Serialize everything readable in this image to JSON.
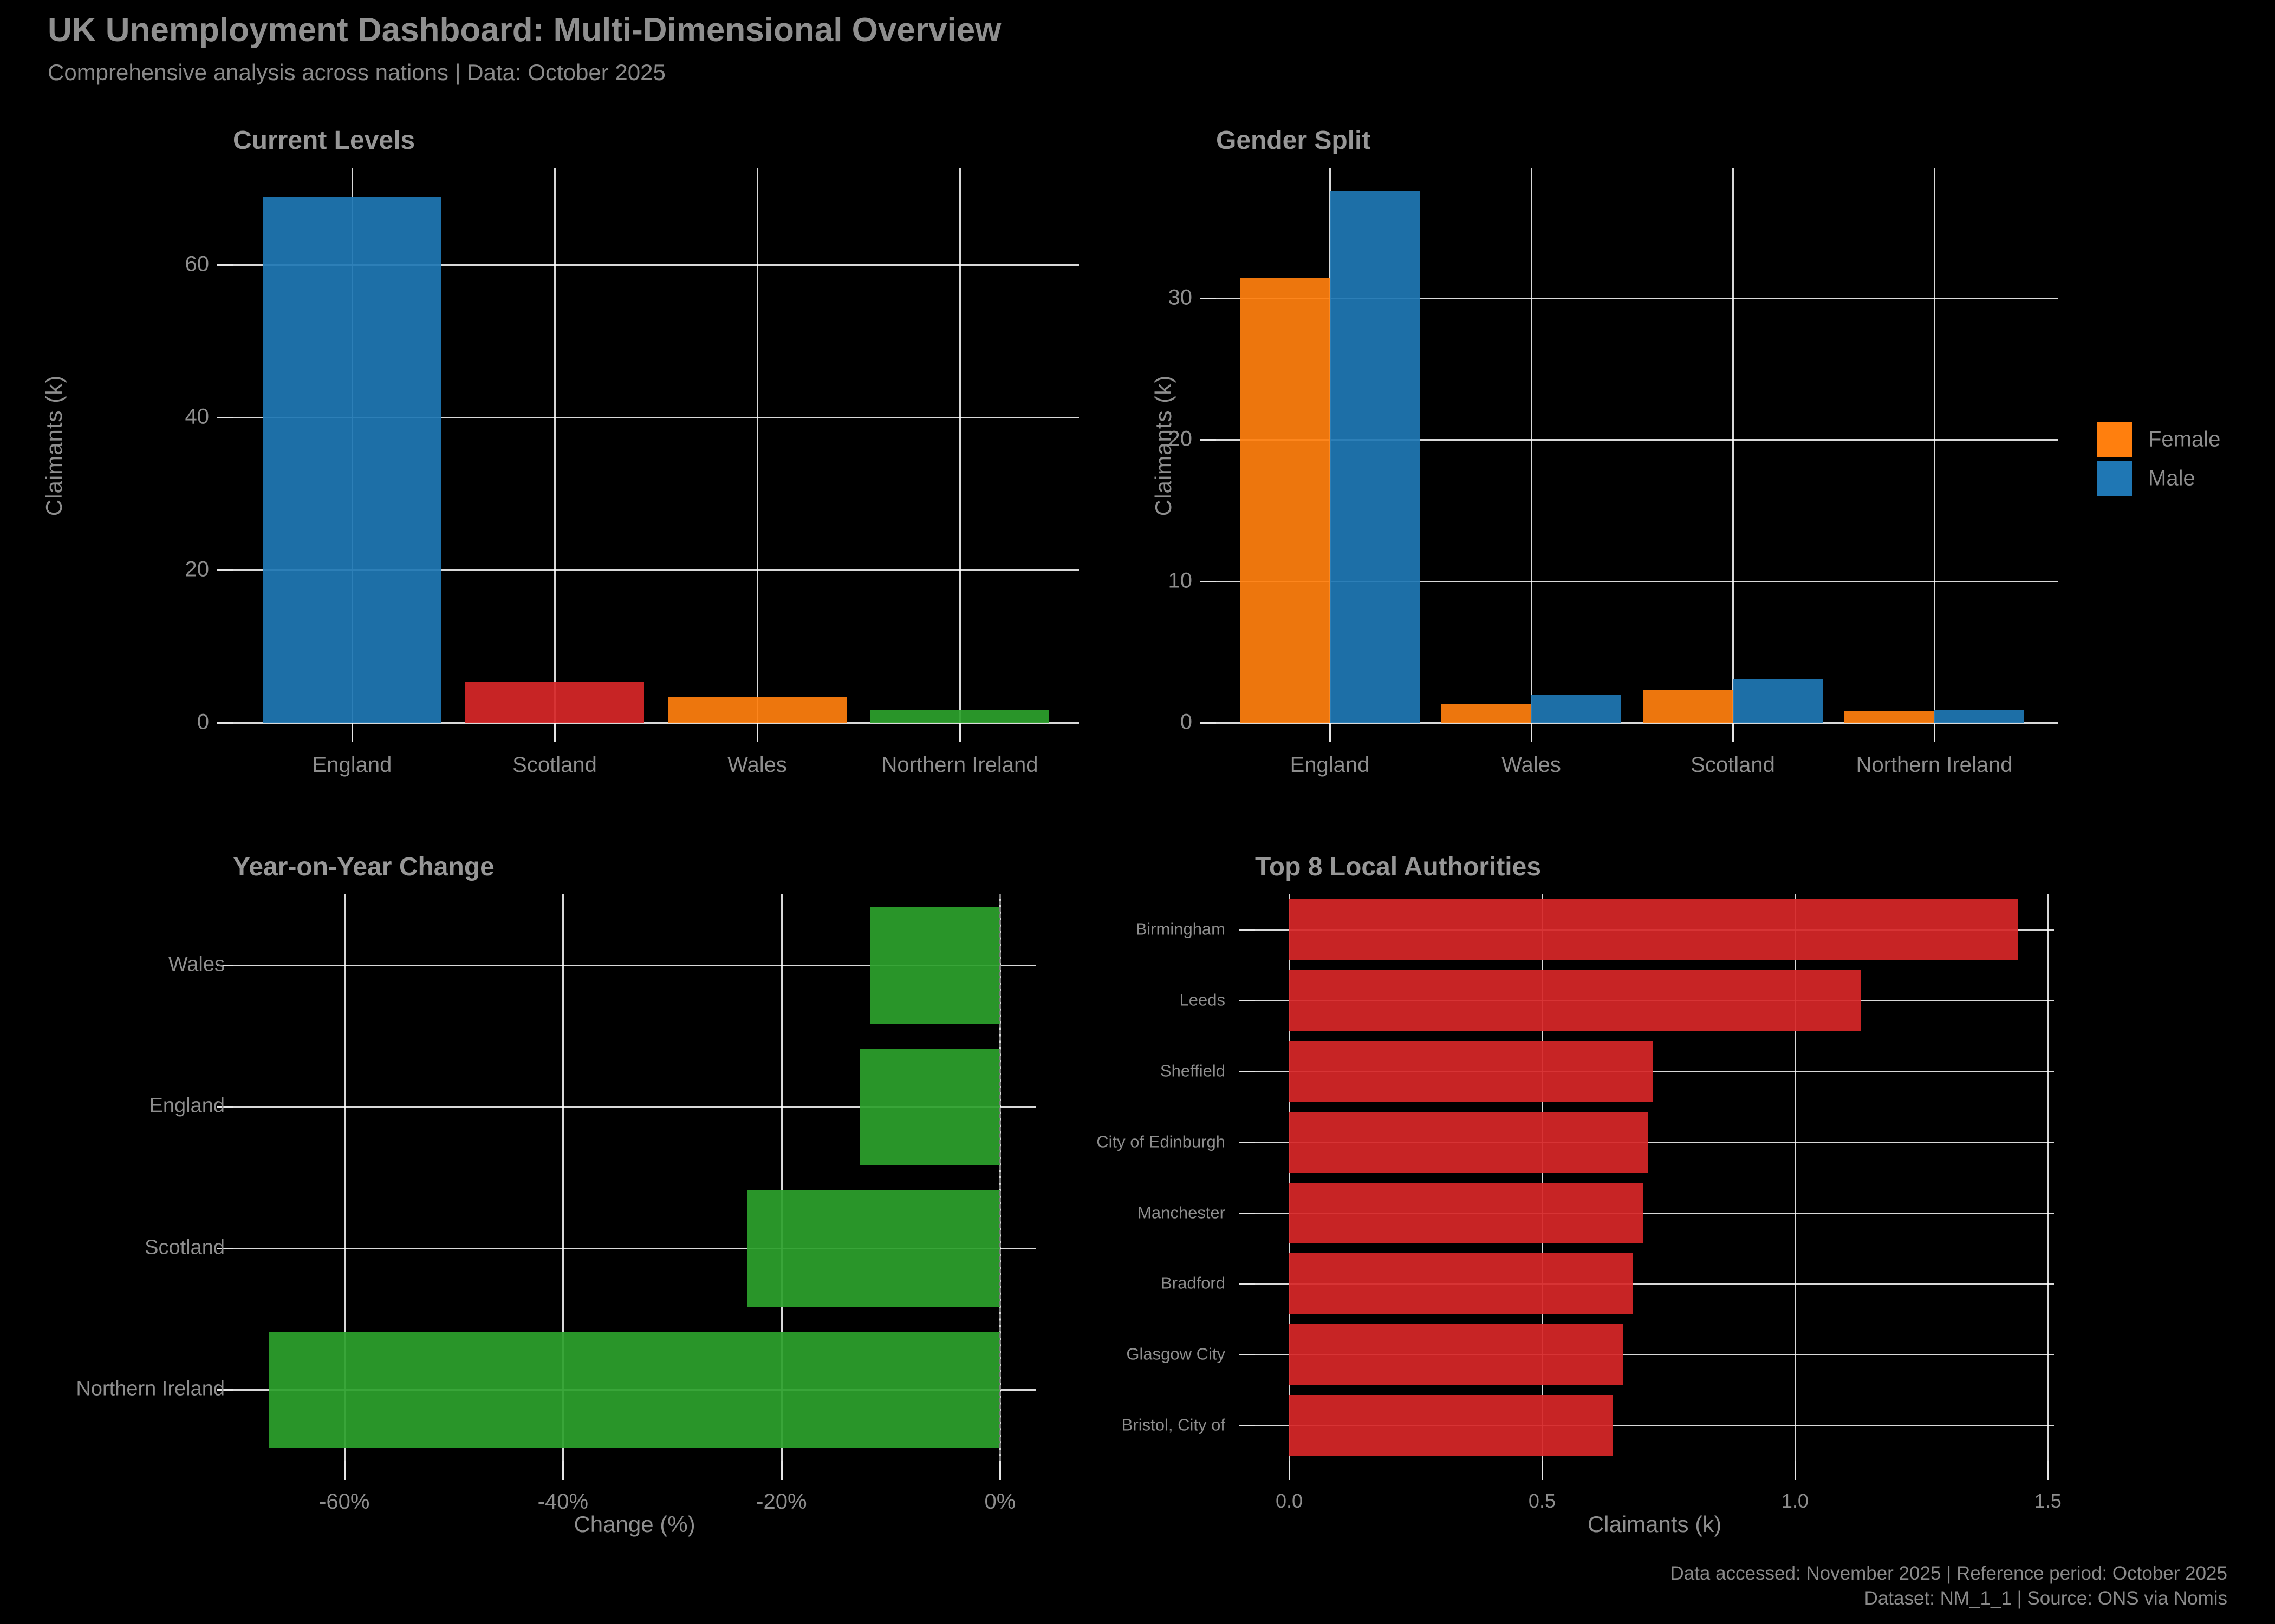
{
  "header": {
    "title": "UK Unemployment Dashboard: Multi-Dimensional Overview",
    "subtitle": "Comprehensive analysis across nations | Data: October 2025"
  },
  "footer": {
    "line1": "Data accessed: November 2025 | Reference period: October 2025",
    "line2": "Dataset: NM_1_1 | Source: ONS via Nomis"
  },
  "colors": {
    "background": "#000000",
    "text": "#8e8e8e",
    "grid": "#ffffff",
    "blue": "#1f77b4",
    "orange": "#ff7f0e",
    "red": "#d62728",
    "green": "#2ca02c"
  },
  "chart_data": [
    {
      "type": "bar",
      "title": "Current Levels",
      "ylabel": "Claimants (k)",
      "categories": [
        "England",
        "Scotland",
        "Wales",
        "Northern Ireland"
      ],
      "values": [
        68.9,
        5.4,
        3.3,
        1.7
      ],
      "bar_colors": [
        "#1f77b4",
        "#d62728",
        "#ff7f0e",
        "#2ca02c"
      ],
      "yticks": [
        0,
        20,
        40,
        60
      ],
      "ytick_labels": [
        "0",
        "20",
        "40",
        "60"
      ],
      "ylim": [
        0,
        72.7
      ],
      "grid": "on"
    },
    {
      "type": "bar",
      "title": "Gender Split",
      "ylabel": "Claimants (k)",
      "categories": [
        "England",
        "Wales",
        "Scotland",
        "Northern Ireland"
      ],
      "series": [
        {
          "name": "Female",
          "color": "#ff7f0e",
          "values": [
            31.4,
            1.3,
            2.3,
            0.8
          ]
        },
        {
          "name": "Male",
          "color": "#1f77b4",
          "values": [
            37.6,
            2.0,
            3.1,
            0.9
          ]
        }
      ],
      "yticks": [
        0,
        10,
        20,
        30
      ],
      "ytick_labels": [
        "0",
        "10",
        "20",
        "30"
      ],
      "ylim": [
        0,
        39.2
      ],
      "legend_position": "right",
      "grid": "on"
    },
    {
      "type": "barh",
      "title": "Year-on-Year Change",
      "xlabel": "Change (%)",
      "categories": [
        "Wales",
        "England",
        "Scotland",
        "Northern Ireland"
      ],
      "values": [
        -11.9,
        -12.8,
        -23.1,
        -66.9
      ],
      "bar_color": "#2ca02c",
      "xticks": [
        -60,
        -40,
        -20,
        0
      ],
      "xtick_labels": [
        "-60%",
        "-40%",
        "-20%",
        "0%"
      ],
      "xlim": [
        -70.2,
        3.3
      ],
      "zero_line": "dashed",
      "grid": "on"
    },
    {
      "type": "barh",
      "title": "Top 8 Local Authorities",
      "xlabel": "Claimants (k)",
      "categories": [
        "Birmingham",
        "Leeds",
        "Sheffield",
        "City of Edinburgh",
        "Manchester",
        "Bradford",
        "Glasgow City",
        "Bristol, City of"
      ],
      "values": [
        1.44,
        1.13,
        0.72,
        0.71,
        0.7,
        0.68,
        0.66,
        0.64
      ],
      "bar_color": "#d62728",
      "xticks": [
        0.0,
        0.5,
        1.0,
        1.5
      ],
      "xtick_labels": [
        "0.0",
        "0.5",
        "1.0",
        "1.5"
      ],
      "xlim": [
        -0.0675,
        1.512
      ],
      "grid": "on"
    }
  ]
}
